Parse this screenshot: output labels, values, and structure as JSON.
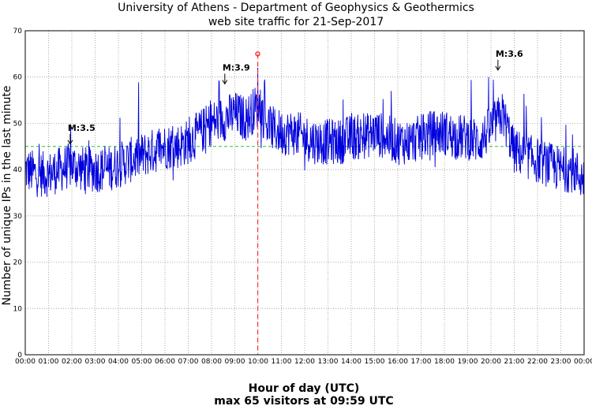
{
  "chart_data": {
    "type": "line",
    "title": "University of Athens - Department of Geophysics & Geothermics",
    "subtitle": "web site traffic for 21-Sep-2017",
    "xlabel": "Hour of day (UTC)",
    "xlabel2": "max 65 visitors at 09:59 UTC",
    "ylabel": "Number of unique IPs in the last minute",
    "xlim": [
      0,
      24
    ],
    "ylim": [
      0,
      70
    ],
    "yticks": [
      0,
      10,
      20,
      30,
      40,
      50,
      60,
      70
    ],
    "xticks": [
      "00:00",
      "01:00",
      "02:00",
      "03:00",
      "04:00",
      "05:00",
      "06:00",
      "07:00",
      "08:00",
      "09:00",
      "10:00",
      "11:00",
      "12:00",
      "13:00",
      "14:00",
      "15:00",
      "16:00",
      "17:00",
      "18:00",
      "19:00",
      "20:00",
      "21:00",
      "22:00",
      "23:00",
      "00:00"
    ],
    "grid": true,
    "mean_line": 45,
    "max": {
      "hour": 9.983,
      "value": 65
    },
    "series": [
      {
        "color": "#0000dd",
        "x": [
          0,
          0.5,
          1,
          1.5,
          2,
          2.5,
          3,
          3.5,
          4,
          4.5,
          5,
          5.5,
          6,
          6.5,
          7,
          7.5,
          8,
          8.5,
          9,
          9.5,
          10,
          10.5,
          11,
          11.5,
          12,
          12.5,
          13,
          13.5,
          14,
          14.5,
          15,
          15.5,
          16,
          16.5,
          17,
          17.5,
          18,
          18.5,
          19,
          19.5,
          20,
          20.5,
          21,
          21.5,
          22,
          22.5,
          23,
          23.5,
          24
        ],
        "y": [
          40,
          39,
          39,
          40,
          41,
          40,
          40,
          40,
          41,
          42,
          43,
          44,
          45,
          45,
          46,
          48,
          50,
          51,
          52,
          51,
          54,
          49,
          48,
          48,
          47,
          46,
          46,
          46,
          47,
          47,
          48,
          47,
          46,
          46,
          47,
          48,
          48,
          47,
          47,
          46,
          49,
          52,
          44,
          43,
          42,
          41,
          40,
          40,
          38
        ]
      }
    ],
    "annotations": [
      {
        "label": "M:3.5",
        "hour": 1.93,
        "value": 45
      },
      {
        "label": "M:3.9",
        "hour": 8.57,
        "value": 58
      },
      {
        "label": "M:3.6",
        "hour": 20.3,
        "value": 61
      }
    ],
    "colors": {
      "series": "#0000dd",
      "mean": "#33bb33",
      "max_marker": "#ff3333"
    }
  }
}
